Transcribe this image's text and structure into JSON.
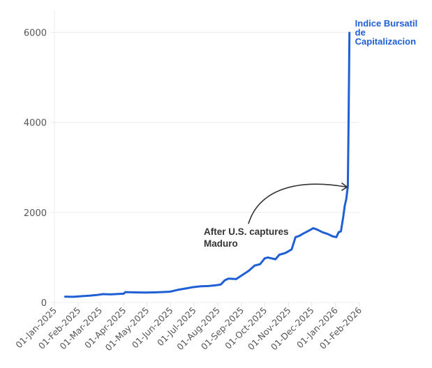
{
  "chart_data": {
    "type": "line",
    "title": "",
    "xlabel": "",
    "ylabel": "",
    "ylim": [
      0,
      6500
    ],
    "yticks": [
      0,
      2000,
      4000,
      6000
    ],
    "ytick_labels": [
      "0",
      "2000",
      "4000",
      "6000"
    ],
    "xtick_labels": [
      "01-Jan-2025",
      "01-Feb-2025",
      "01-Mar-2025",
      "01-Apr-2025",
      "01-May-2025",
      "01-Jun-2025",
      "01-Jul-2025",
      "01-Aug-2025",
      "01-Sep-2025",
      "01-Oct-2025",
      "01-Nov-2025",
      "01-Dec-2025",
      "01-Jan-2026",
      "01-Feb-2026"
    ],
    "grid": true,
    "legend_position": "end-of-line label",
    "series": [
      {
        "name": "Indice Bursatil de Capitalizacion",
        "color": "#1f5fd6",
        "points": [
          [
            "2025-01-15",
            130
          ],
          [
            "2025-01-25",
            125
          ],
          [
            "2025-02-05",
            140
          ],
          [
            "2025-02-15",
            150
          ],
          [
            "2025-02-25",
            165
          ],
          [
            "2025-03-05",
            185
          ],
          [
            "2025-03-15",
            180
          ],
          [
            "2025-03-25",
            190
          ],
          [
            "2025-04-01",
            195
          ],
          [
            "2025-04-03",
            230
          ],
          [
            "2025-04-15",
            225
          ],
          [
            "2025-04-30",
            220
          ],
          [
            "2025-05-10",
            225
          ],
          [
            "2025-05-20",
            230
          ],
          [
            "2025-05-31",
            240
          ],
          [
            "2025-06-10",
            280
          ],
          [
            "2025-06-20",
            310
          ],
          [
            "2025-06-30",
            340
          ],
          [
            "2025-07-10",
            360
          ],
          [
            "2025-07-20",
            365
          ],
          [
            "2025-07-31",
            385
          ],
          [
            "2025-08-05",
            400
          ],
          [
            "2025-08-10",
            490
          ],
          [
            "2025-08-15",
            530
          ],
          [
            "2025-08-25",
            520
          ],
          [
            "2025-09-01",
            600
          ],
          [
            "2025-09-10",
            700
          ],
          [
            "2025-09-18",
            820
          ],
          [
            "2025-09-25",
            850
          ],
          [
            "2025-10-01",
            980
          ],
          [
            "2025-10-05",
            1000
          ],
          [
            "2025-10-15",
            960
          ],
          [
            "2025-10-20",
            1060
          ],
          [
            "2025-10-28",
            1100
          ],
          [
            "2025-11-05",
            1180
          ],
          [
            "2025-11-10",
            1450
          ],
          [
            "2025-11-15",
            1480
          ],
          [
            "2025-11-20",
            1530
          ],
          [
            "2025-11-28",
            1600
          ],
          [
            "2025-12-03",
            1650
          ],
          [
            "2025-12-08",
            1620
          ],
          [
            "2025-12-15",
            1560
          ],
          [
            "2025-12-22",
            1520
          ],
          [
            "2025-12-28",
            1470
          ],
          [
            "2026-01-02",
            1450
          ],
          [
            "2026-01-05",
            1560
          ],
          [
            "2026-01-08",
            1580
          ],
          [
            "2026-01-11",
            1900
          ],
          [
            "2026-01-13",
            2150
          ],
          [
            "2026-01-15",
            2300
          ],
          [
            "2026-01-17",
            2580
          ],
          [
            "2026-01-18",
            4200
          ],
          [
            "2026-01-19",
            5990
          ]
        ]
      }
    ],
    "annotations": [
      {
        "text_lines": [
          "After U.S. captures",
          "Maduro"
        ],
        "points_to": [
          "2026-01-17",
          2580
        ],
        "arrow": "curved"
      }
    ]
  }
}
